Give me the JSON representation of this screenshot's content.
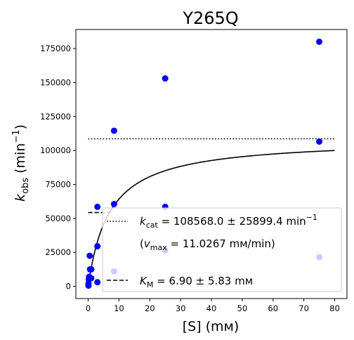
{
  "chart_data": {
    "type": "scatter",
    "title": "Y265Q",
    "xlabel": "[S] (mм)",
    "xlim": [
      -4,
      84
    ],
    "ylim": [
      -9000,
      189000
    ],
    "xticks": [
      0,
      10,
      20,
      30,
      40,
      50,
      60,
      70,
      80
    ],
    "yticks": [
      0,
      25000,
      50000,
      75000,
      100000,
      125000,
      150000,
      175000
    ],
    "grid": false,
    "legend_position": "bottom-right",
    "series": [
      {
        "kind": "scatter",
        "color": "#0000ff",
        "points": [
          {
            "x": 0.1,
            "y": 500
          },
          {
            "x": 0.1,
            "y": 2000
          },
          {
            "x": 0.2,
            "y": 5000
          },
          {
            "x": 0.3,
            "y": 7000
          },
          {
            "x": 0.5,
            "y": 22500
          },
          {
            "x": 0.6,
            "y": 12500
          },
          {
            "x": 1.0,
            "y": 12500
          },
          {
            "x": 1.0,
            "y": 6000
          },
          {
            "x": 3.0,
            "y": 58500
          },
          {
            "x": 3.0,
            "y": 29500
          },
          {
            "x": 3.0,
            "y": 3000
          },
          {
            "x": 8.4,
            "y": 114500
          },
          {
            "x": 8.4,
            "y": 60500
          },
          {
            "x": 8.4,
            "y": 11000
          },
          {
            "x": 25.0,
            "y": 153000
          },
          {
            "x": 25.0,
            "y": 58500
          },
          {
            "x": 25.0,
            "y": 26500
          },
          {
            "x": 75.0,
            "y": 180000
          },
          {
            "x": 75.0,
            "y": 106500
          },
          {
            "x": 75.0,
            "y": 21500
          }
        ]
      },
      {
        "kind": "fit-curve",
        "vmax": 108568.0,
        "km": 6.9,
        "x_range": [
          0,
          80
        ],
        "color": "#000000"
      },
      {
        "kind": "kcat-line",
        "y": 108568.0,
        "x_range": [
          0,
          80
        ],
        "color": "#000000"
      },
      {
        "kind": "km-line",
        "y": 54284,
        "x_range": [
          0,
          6.9
        ],
        "color": "#000000"
      }
    ],
    "legend": {
      "kcat_prefix": "k",
      "kcat_sub": "cat",
      "kcat_text": " = 108568.0 ± 25899.4 min",
      "kcat_sup": "−1",
      "vmax_open": "(",
      "vmax_v": "v",
      "vmax_sub": "max",
      "vmax_text": " = 11.0267 mм/min)",
      "km_prefix": "K",
      "km_sub": "M",
      "km_text": " = 6.90 ± 5.83 mм"
    },
    "ylabel": {
      "k": "k",
      "sub": "obs",
      "unit_open": " (min",
      "sup": "−1",
      "unit_close": ")"
    }
  }
}
